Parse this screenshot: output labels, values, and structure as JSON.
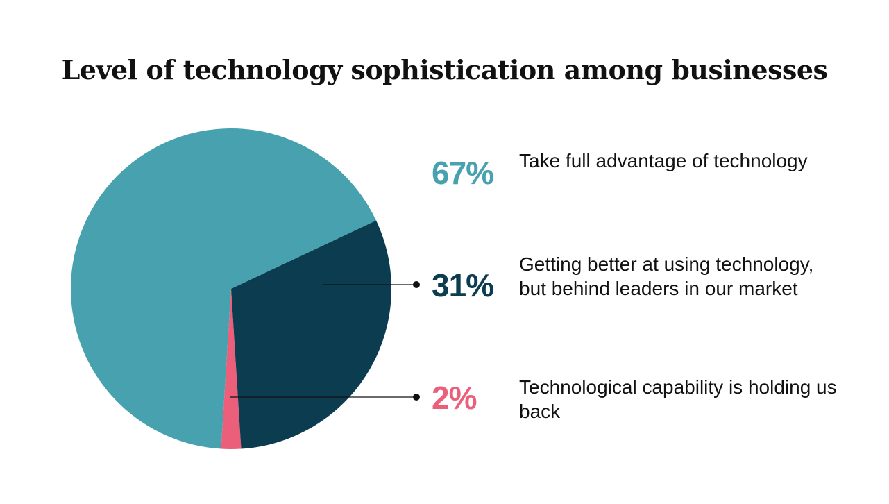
{
  "chart_data": {
    "type": "pie",
    "title": "Level of technology sophistication among businesses",
    "slices": [
      {
        "label": "Take full advantage of technology",
        "percent_label": "67%",
        "value": 67,
        "color": "#48a1ae"
      },
      {
        "label": "Getting better at using technology, but behind leaders in our market",
        "percent_label": "31%",
        "value": 31,
        "color": "#0b3c4f"
      },
      {
        "label": "Technological capability is holding us back",
        "percent_label": "2%",
        "value": 2,
        "color": "#ec5f7b"
      }
    ],
    "legend": "right"
  },
  "colors": {
    "leader_line": "#111111"
  }
}
